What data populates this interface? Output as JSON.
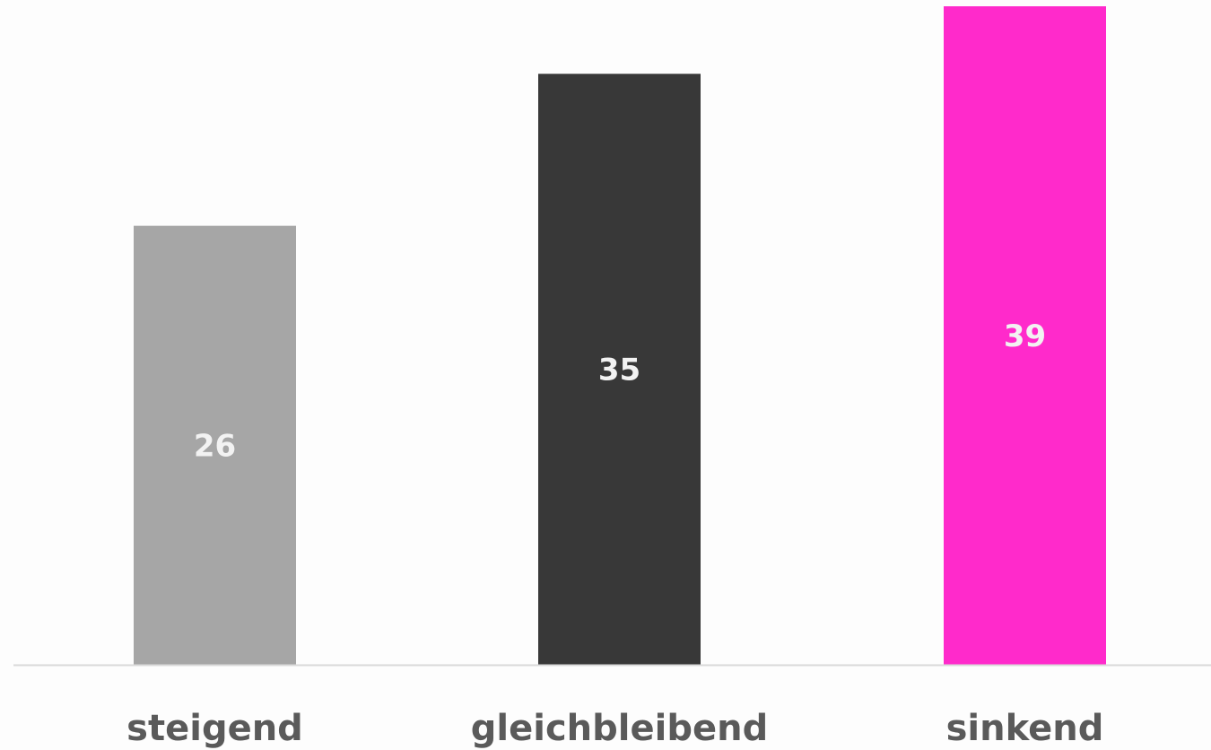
{
  "chart_data": {
    "type": "bar",
    "categories": [
      "steigend",
      "gleichbleibend",
      "sinkend"
    ],
    "values": [
      26,
      35,
      39
    ],
    "value_labels": [
      "26",
      "35",
      "39"
    ],
    "colors": [
      "#a6a6a6",
      "#383838",
      "#ff2acb"
    ],
    "label_colors": [
      "#f2f2f2",
      "#f2f2f2",
      "#f2f2f2"
    ],
    "axis_color": "#d9d9d9",
    "category_label_color": "#5a5a5a",
    "ylim": [
      0,
      39
    ],
    "grid": false,
    "legend": "none",
    "title": "",
    "xlabel": "",
    "ylabel": ""
  }
}
